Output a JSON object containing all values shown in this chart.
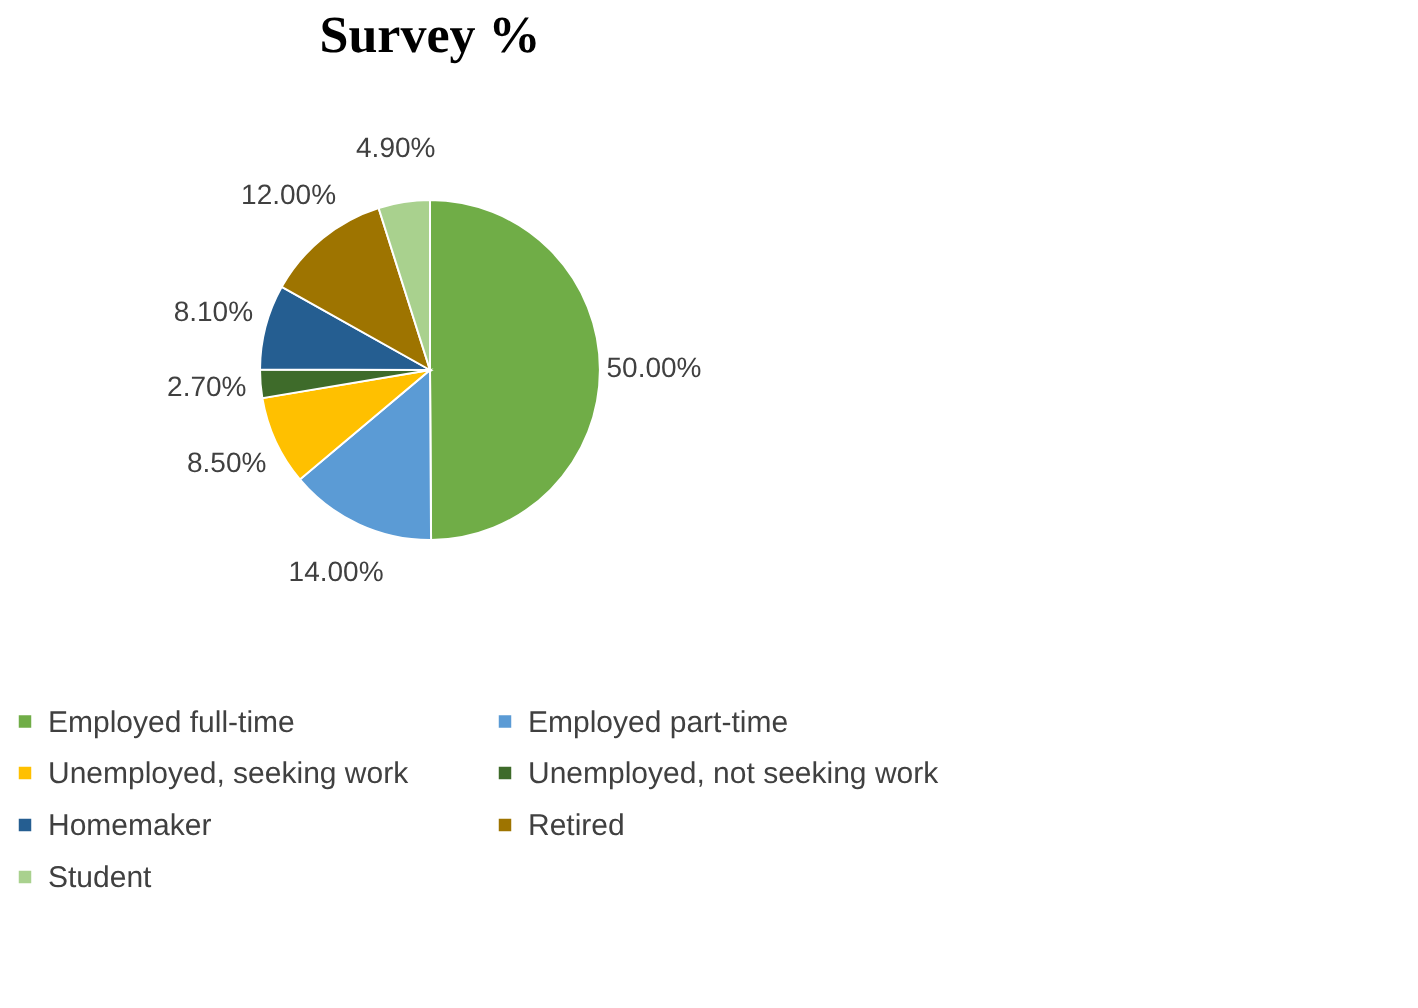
{
  "chart_data": {
    "type": "pie",
    "title": "Survey %",
    "categories": [
      "Employed full-time",
      "Employed part-time",
      "Unemployed, seeking work",
      "Unemployed, not seeking work",
      "Homemaker",
      "Retired",
      "Student"
    ],
    "values": [
      50,
      14,
      8.5,
      2.7,
      8.1,
      12,
      4.9
    ],
    "value_labels": [
      "50.00%",
      "14.00%",
      "8.50%",
      "2.70%",
      "8.10%",
      "12.00%",
      "4.90%"
    ],
    "colors": [
      "#70ad47",
      "#5b9bd5",
      "#ffc000",
      "#3e6b2a",
      "#255e91",
      "#9e7400",
      "#a9d18e"
    ],
    "legend": "bottom"
  }
}
